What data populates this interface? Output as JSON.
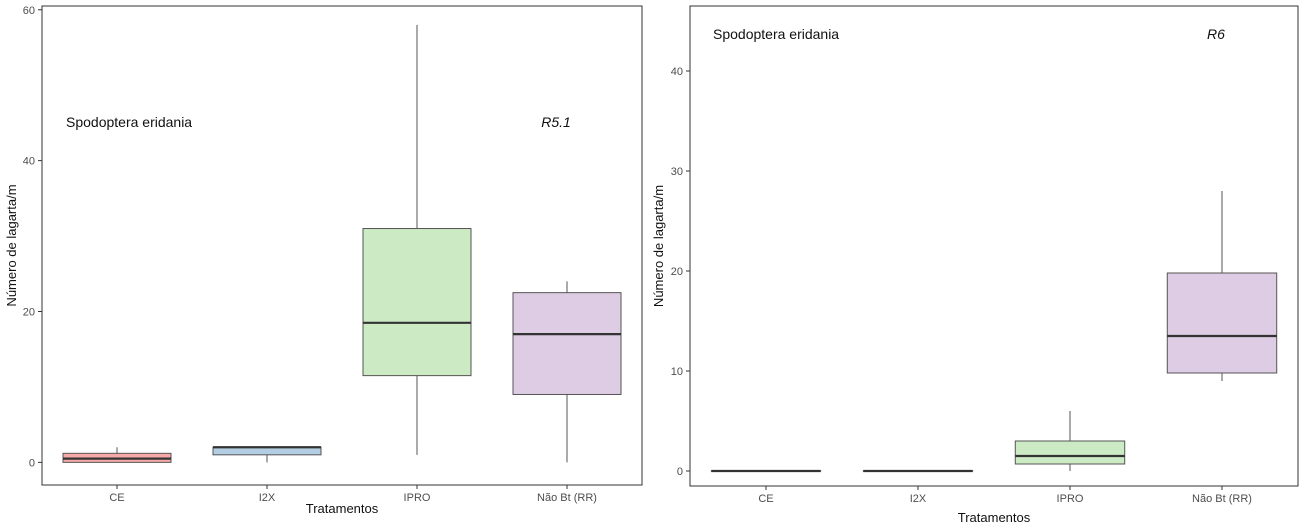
{
  "chart_data": [
    {
      "type": "box",
      "species_label": "Spodoptera eridania",
      "stage_label": "R5.1",
      "xlabel": "Tratamentos",
      "ylabel": "Número de lagarta/m",
      "ylim": [
        -3,
        60.5
      ],
      "yticks": [
        0,
        20,
        40,
        60
      ],
      "grid": false,
      "categories": [
        "CE",
        "I2X",
        "IPRO",
        "Não Bt (RR)"
      ],
      "colors": [
        "#f4a9a8",
        "#b3cde3",
        "#ccebc5",
        "#decbe4"
      ],
      "boxes": [
        {
          "min": 0,
          "q1": 0,
          "median": 0.5,
          "q3": 1.2,
          "max": 2
        },
        {
          "min": 0,
          "q1": 1,
          "median": 2,
          "q3": 2,
          "max": 2
        },
        {
          "min": 1,
          "q1": 11.5,
          "median": 18.5,
          "q3": 31,
          "max": 58
        },
        {
          "min": 0,
          "q1": 9,
          "median": 17,
          "q3": 22.5,
          "max": 24
        }
      ]
    },
    {
      "type": "box",
      "species_label": "Spodoptera eridania",
      "stage_label": "R6",
      "xlabel": "Tratamentos",
      "ylabel": "Número de lagarta/m",
      "ylim": [
        -1.5,
        46.5
      ],
      "yticks": [
        0,
        10,
        20,
        30,
        40
      ],
      "grid": false,
      "categories": [
        "CE",
        "I2X",
        "IPRO",
        "Não Bt (RR)"
      ],
      "colors": [
        "#f4a9a8",
        "#b3cde3",
        "#ccebc5",
        "#decbe4"
      ],
      "boxes": [
        {
          "min": 0,
          "q1": 0,
          "median": 0,
          "q3": 0,
          "max": 0
        },
        {
          "min": 0,
          "q1": 0,
          "median": 0,
          "q3": 0,
          "max": 0
        },
        {
          "min": 0,
          "q1": 0.7,
          "median": 1.5,
          "q3": 3,
          "max": 6
        },
        {
          "min": 9,
          "q1": 9.8,
          "median": 13.5,
          "q3": 19.8,
          "max": 28
        }
      ]
    }
  ]
}
